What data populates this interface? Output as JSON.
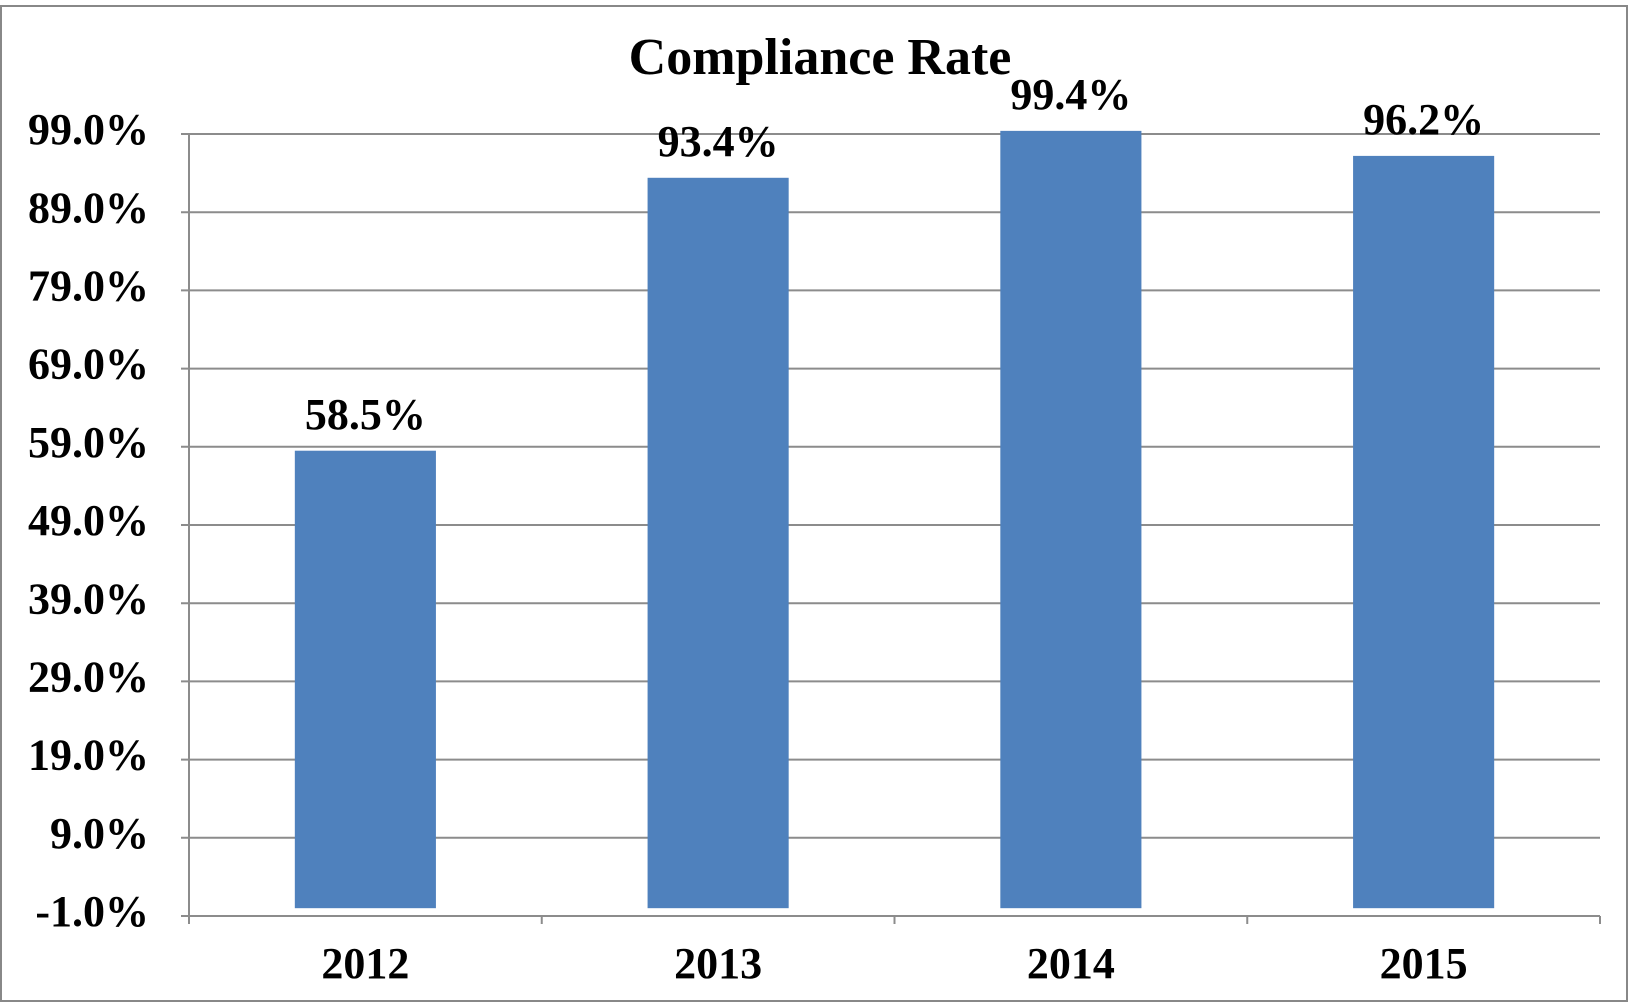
{
  "chart_data": {
    "type": "bar",
    "title": "Compliance Rate",
    "categories": [
      "2012",
      "2013",
      "2014",
      "2015"
    ],
    "values": [
      58.5,
      93.4,
      99.4,
      96.2
    ],
    "value_labels": [
      "58.5%",
      "93.4%",
      "99.4%",
      "96.2%"
    ],
    "color": "#4f81bd",
    "ylim": [
      -1,
      99
    ],
    "yticks": [
      {
        "value": -1,
        "label": "-1.0%"
      },
      {
        "value": 9,
        "label": "9.0%"
      },
      {
        "value": 19,
        "label": "19.0%"
      },
      {
        "value": 29,
        "label": "29.0%"
      },
      {
        "value": 39,
        "label": "39.0%"
      },
      {
        "value": 49,
        "label": "49.0%"
      },
      {
        "value": 59,
        "label": "59.0%"
      },
      {
        "value": 69,
        "label": "69.0%"
      },
      {
        "value": 79,
        "label": "79.0%"
      },
      {
        "value": 89,
        "label": "89.0%"
      },
      {
        "value": 99,
        "label": "99.0%"
      }
    ],
    "grid": true
  }
}
